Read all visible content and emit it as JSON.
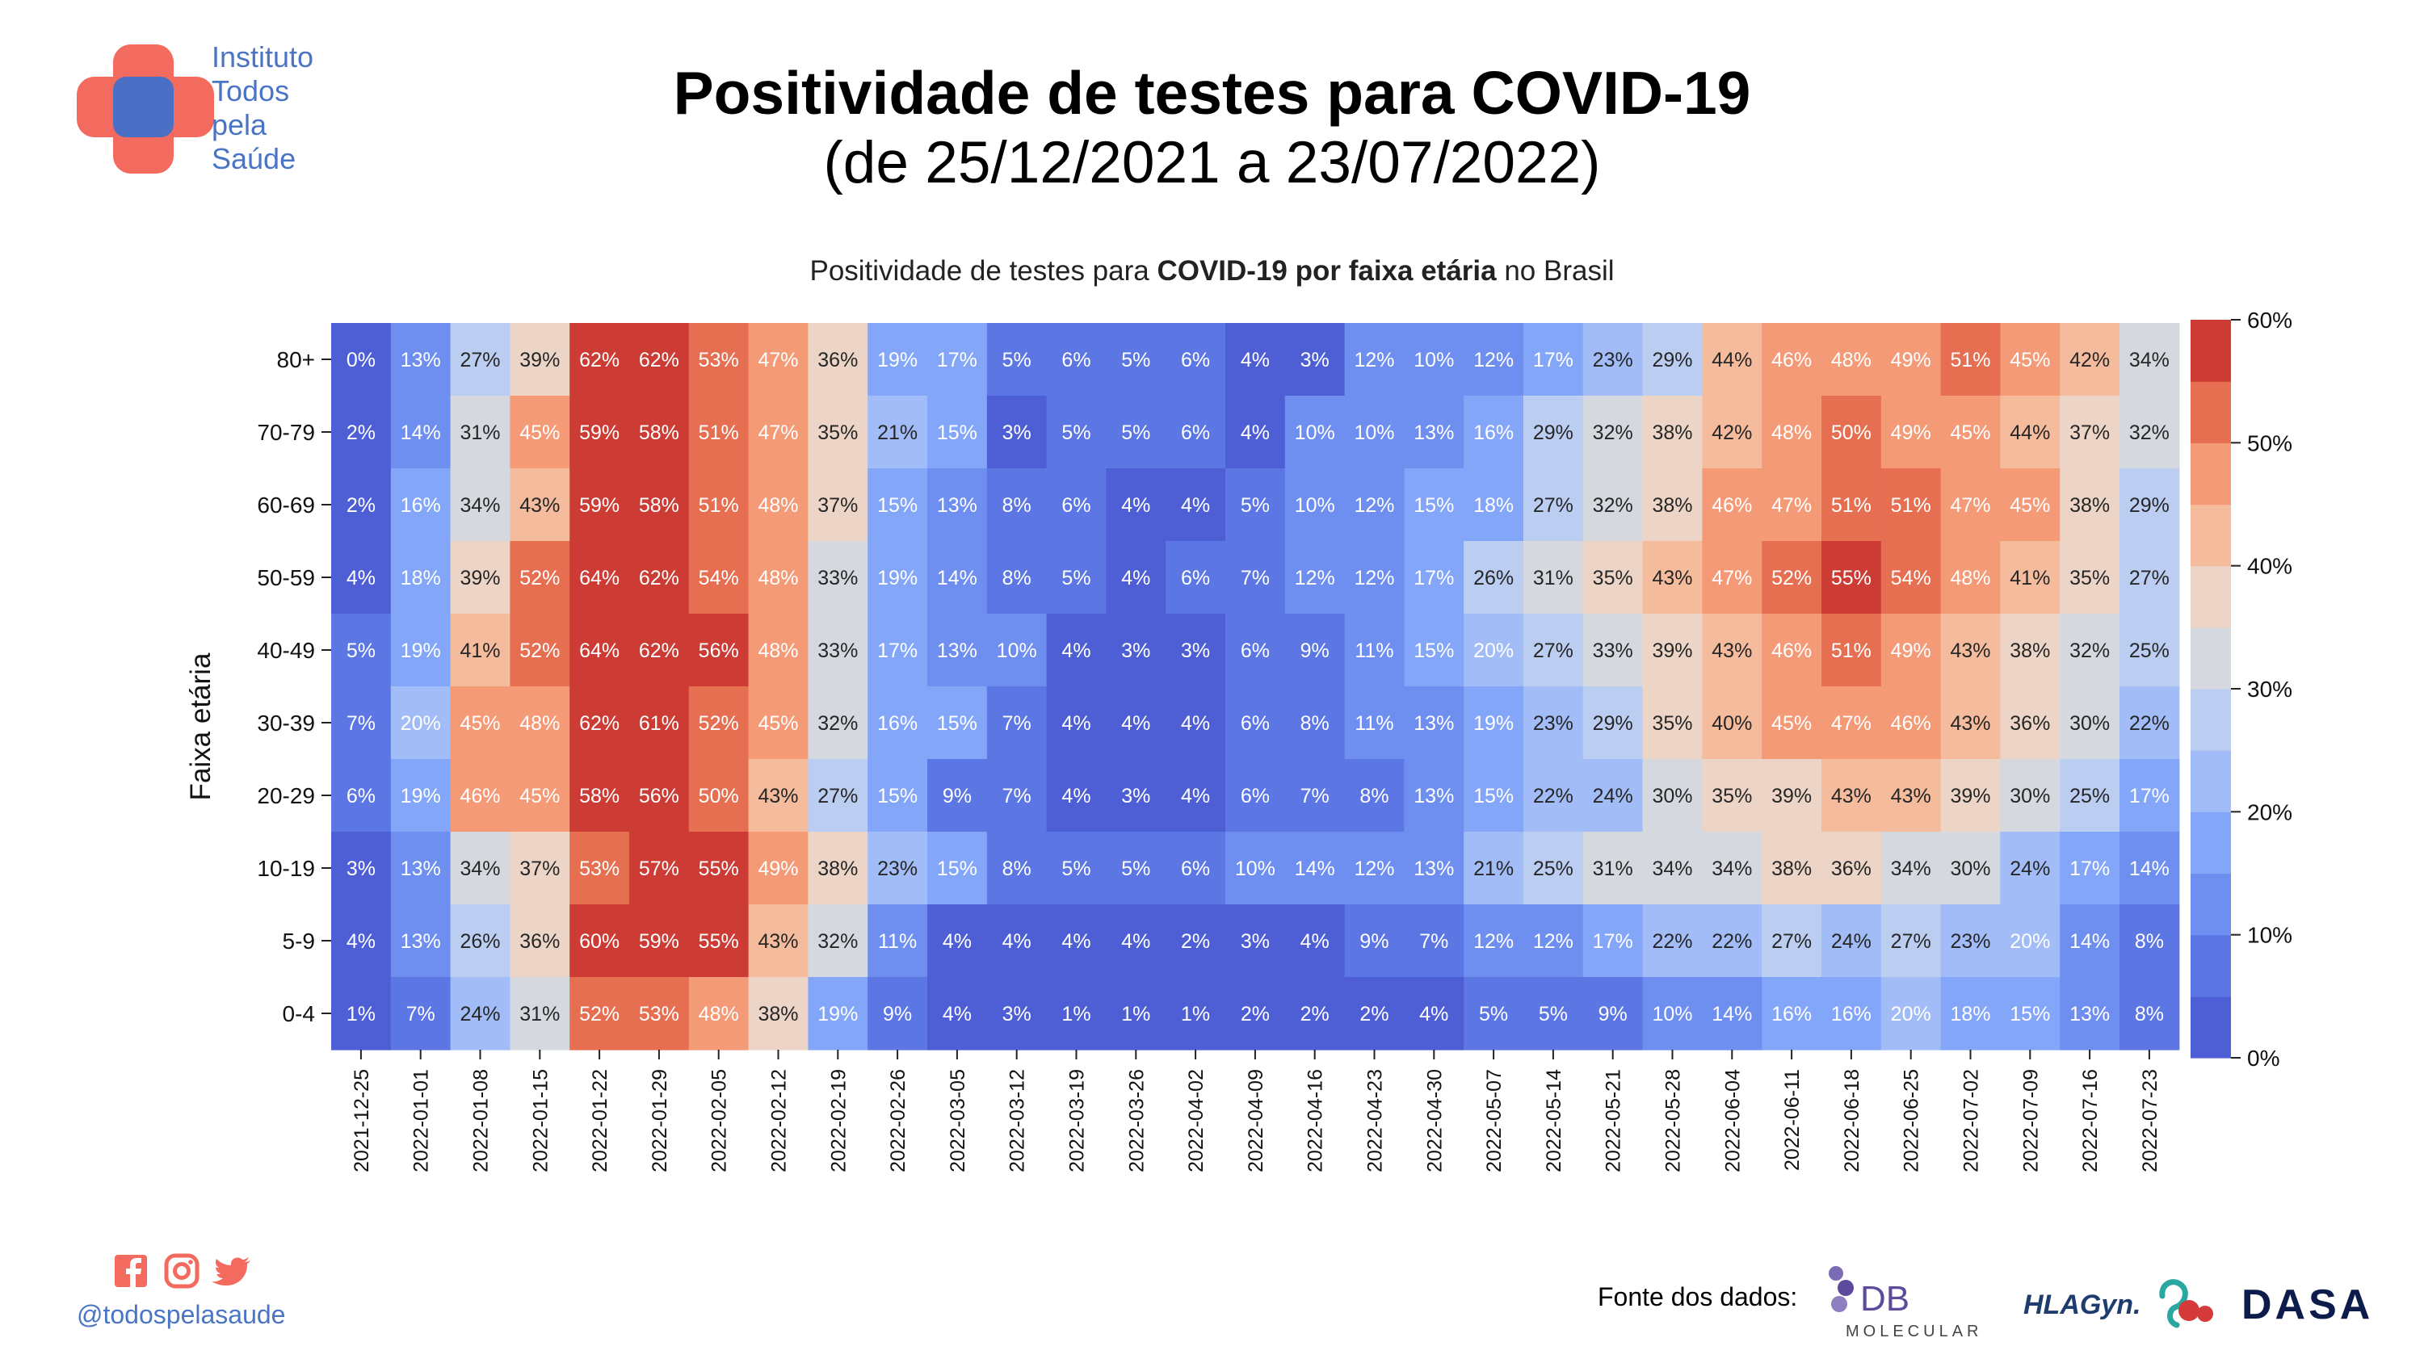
{
  "logo": {
    "lines": [
      "Instituto",
      "Todos",
      "pela",
      "Saúde"
    ]
  },
  "title_line1": "Positividade de testes para COVID-19",
  "title_line2": "(de 25/12/2021 a 23/07/2022)",
  "subtitle": {
    "part1": "Positividade de testes para ",
    "bold": "COVID-19 por faixa etária",
    "part2": " no Brasil"
  },
  "social": {
    "icons": [
      "facebook-icon",
      "instagram-icon",
      "twitter-icon"
    ],
    "handle": "@todospelasaude"
  },
  "source": {
    "label": "Fonte dos dados:",
    "logos": [
      "DB Molecular",
      "HLAGyn",
      "DASA"
    ],
    "db_text": "DB",
    "db_sub": "MOLECULAR",
    "hla_text": "HLAGyn.",
    "dasa_text": "DASA"
  },
  "chart_data": {
    "type": "heatmap",
    "title": "Positividade de testes para COVID-19 por faixa etária no Brasil",
    "ylabel": "Faixa etária",
    "xlabel": "",
    "x": [
      "2021-12-25",
      "2022-01-01",
      "2022-01-08",
      "2022-01-15",
      "2022-01-22",
      "2022-01-29",
      "2022-02-05",
      "2022-02-12",
      "2022-02-19",
      "2022-02-26",
      "2022-03-05",
      "2022-03-12",
      "2022-03-19",
      "2022-03-26",
      "2022-04-02",
      "2022-04-09",
      "2022-04-16",
      "2022-04-23",
      "2022-04-30",
      "2022-05-07",
      "2022-05-14",
      "2022-05-21",
      "2022-05-28",
      "2022-06-04",
      "2022-06-11",
      "2022-06-18",
      "2022-06-25",
      "2022-07-02",
      "2022-07-09",
      "2022-07-16",
      "2022-07-23"
    ],
    "y": [
      "80+",
      "70-79",
      "60-69",
      "50-59",
      "40-49",
      "30-39",
      "20-29",
      "10-19",
      "5-9",
      "0-4"
    ],
    "values": [
      [
        0,
        13,
        27,
        39,
        62,
        62,
        53,
        47,
        36,
        19,
        17,
        5,
        6,
        5,
        6,
        4,
        3,
        12,
        10,
        12,
        17,
        23,
        29,
        44,
        46,
        48,
        49,
        51,
        45,
        42,
        34
      ],
      [
        2,
        14,
        31,
        45,
        59,
        58,
        51,
        47,
        35,
        21,
        15,
        3,
        5,
        5,
        6,
        4,
        10,
        10,
        13,
        16,
        29,
        32,
        38,
        42,
        48,
        50,
        49,
        45,
        44,
        37,
        32
      ],
      [
        2,
        16,
        34,
        43,
        59,
        58,
        51,
        48,
        37,
        15,
        13,
        8,
        6,
        4,
        4,
        5,
        10,
        12,
        15,
        18,
        27,
        32,
        38,
        46,
        47,
        51,
        51,
        47,
        45,
        38,
        29
      ],
      [
        4,
        18,
        39,
        52,
        64,
        62,
        54,
        48,
        33,
        19,
        14,
        8,
        5,
        4,
        6,
        7,
        12,
        12,
        17,
        26,
        31,
        35,
        43,
        47,
        52,
        55,
        54,
        48,
        41,
        35,
        27
      ],
      [
        5,
        19,
        41,
        52,
        64,
        62,
        56,
        48,
        33,
        17,
        13,
        10,
        4,
        3,
        3,
        6,
        9,
        11,
        15,
        20,
        27,
        33,
        39,
        43,
        46,
        51,
        49,
        43,
        38,
        32,
        25
      ],
      [
        7,
        20,
        45,
        48,
        62,
        61,
        52,
        45,
        32,
        16,
        15,
        7,
        4,
        4,
        4,
        6,
        8,
        11,
        13,
        19,
        23,
        29,
        35,
        40,
        45,
        47,
        46,
        43,
        36,
        30,
        22
      ],
      [
        6,
        19,
        46,
        45,
        58,
        56,
        50,
        43,
        27,
        15,
        9,
        7,
        4,
        3,
        4,
        6,
        7,
        8,
        13,
        15,
        22,
        24,
        30,
        35,
        39,
        43,
        43,
        39,
        30,
        25,
        17
      ],
      [
        3,
        13,
        34,
        37,
        53,
        57,
        55,
        49,
        38,
        23,
        15,
        8,
        5,
        5,
        6,
        10,
        14,
        12,
        13,
        21,
        25,
        31,
        34,
        34,
        38,
        36,
        34,
        30,
        24,
        17,
        14
      ],
      [
        4,
        13,
        26,
        36,
        60,
        59,
        55,
        43,
        32,
        11,
        4,
        4,
        4,
        4,
        2,
        3,
        4,
        9,
        7,
        12,
        12,
        17,
        22,
        22,
        27,
        24,
        27,
        23,
        20,
        14,
        8
      ],
      [
        1,
        7,
        24,
        31,
        52,
        53,
        48,
        38,
        19,
        9,
        4,
        3,
        1,
        1,
        1,
        2,
        2,
        2,
        4,
        5,
        5,
        9,
        10,
        14,
        16,
        16,
        20,
        18,
        15,
        13,
        8
      ]
    ],
    "value_suffix": "%",
    "colorbar": {
      "range": [
        0,
        60
      ],
      "ticks": [
        "0%",
        "10%",
        "20%",
        "30%",
        "40%",
        "50%",
        "60%"
      ],
      "bins": 12
    },
    "colors": [
      "#4e5fd6",
      "#5c77e3",
      "#6e8ff0",
      "#84a6f8",
      "#a2bcf8",
      "#bccdf2",
      "#d6d8df",
      "#ecd5c6",
      "#f5bb9d",
      "#f49a77",
      "#e66f52",
      "#cc3c34"
    ]
  }
}
